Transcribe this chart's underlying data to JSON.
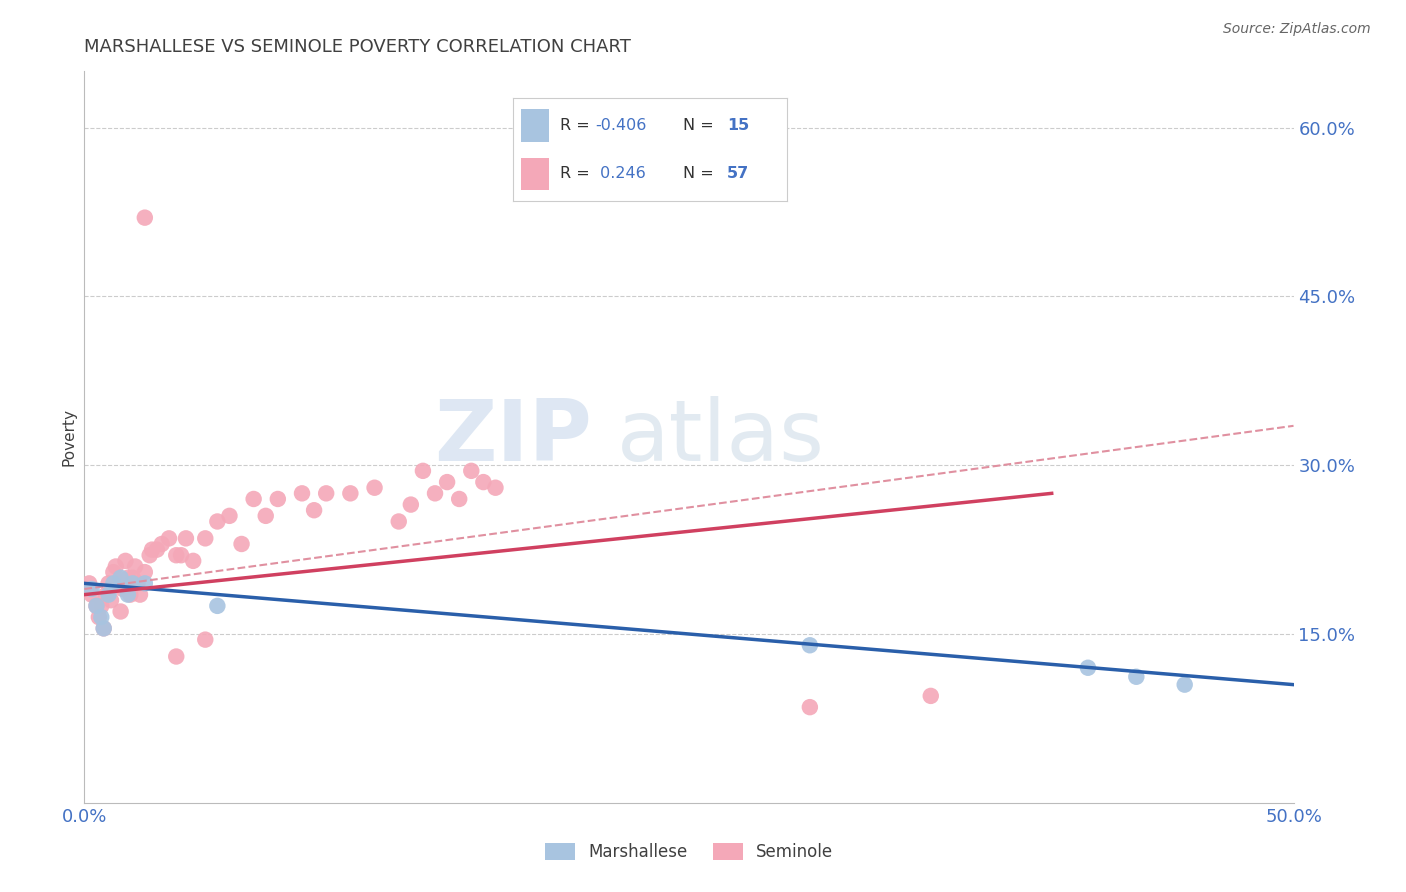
{
  "title": "MARSHALLESE VS SEMINOLE POVERTY CORRELATION CHART",
  "source": "Source: ZipAtlas.com",
  "ylabel": "Poverty",
  "xlim": [
    0.0,
    0.5
  ],
  "ylim": [
    0.0,
    0.65
  ],
  "yticks": [
    0.15,
    0.3,
    0.45,
    0.6
  ],
  "ytick_labels": [
    "15.0%",
    "30.0%",
    "45.0%",
    "60.0%"
  ],
  "xticks": [
    0.0,
    0.0625,
    0.125,
    0.1875,
    0.25,
    0.3125,
    0.375,
    0.4375,
    0.5
  ],
  "xtick_labels": [
    "0.0%",
    "",
    "",
    "",
    "",
    "",
    "",
    "",
    "50.0%"
  ],
  "marshallese_color": "#a8c4e0",
  "seminole_color": "#f4a8b8",
  "marshallese_line_color": "#2a5faa",
  "seminole_line_color": "#d04060",
  "seminole_dashed_color": "#e090a0",
  "R_marshallese": -0.406,
  "N_marshallese": 15,
  "R_seminole": 0.246,
  "N_seminole": 57,
  "marshallese_x": [
    0.003,
    0.005,
    0.007,
    0.008,
    0.01,
    0.012,
    0.015,
    0.018,
    0.02,
    0.025,
    0.055,
    0.3,
    0.415,
    0.435,
    0.455
  ],
  "marshallese_y": [
    0.19,
    0.175,
    0.165,
    0.155,
    0.185,
    0.195,
    0.2,
    0.185,
    0.195,
    0.195,
    0.175,
    0.14,
    0.12,
    0.112,
    0.105
  ],
  "seminole_x": [
    0.002,
    0.003,
    0.005,
    0.006,
    0.007,
    0.008,
    0.009,
    0.01,
    0.011,
    0.012,
    0.013,
    0.014,
    0.015,
    0.016,
    0.017,
    0.018,
    0.019,
    0.02,
    0.021,
    0.022,
    0.023,
    0.025,
    0.027,
    0.028,
    0.03,
    0.032,
    0.035,
    0.038,
    0.04,
    0.042,
    0.045,
    0.05,
    0.055,
    0.06,
    0.065,
    0.07,
    0.075,
    0.08,
    0.09,
    0.095,
    0.1,
    0.11,
    0.12,
    0.13,
    0.135,
    0.14,
    0.145,
    0.15,
    0.155,
    0.16,
    0.165,
    0.17,
    0.3,
    0.35,
    0.038,
    0.025,
    0.05
  ],
  "seminole_y": [
    0.195,
    0.185,
    0.175,
    0.165,
    0.175,
    0.155,
    0.185,
    0.195,
    0.18,
    0.205,
    0.21,
    0.195,
    0.17,
    0.19,
    0.215,
    0.2,
    0.185,
    0.2,
    0.21,
    0.195,
    0.185,
    0.205,
    0.22,
    0.225,
    0.225,
    0.23,
    0.235,
    0.22,
    0.22,
    0.235,
    0.215,
    0.235,
    0.25,
    0.255,
    0.23,
    0.27,
    0.255,
    0.27,
    0.275,
    0.26,
    0.275,
    0.275,
    0.28,
    0.25,
    0.265,
    0.295,
    0.275,
    0.285,
    0.27,
    0.295,
    0.285,
    0.28,
    0.085,
    0.095,
    0.13,
    0.52,
    0.145
  ],
  "marshallese_line": [
    0.0,
    0.5,
    0.195,
    0.105
  ],
  "seminole_line": [
    0.0,
    0.4,
    0.185,
    0.275
  ],
  "seminole_dashed": [
    0.0,
    0.5,
    0.19,
    0.335
  ],
  "background_color": "#ffffff",
  "grid_color": "#cccccc",
  "title_color": "#404040",
  "tick_color": "#4472c4",
  "watermark": "ZIPatlas"
}
